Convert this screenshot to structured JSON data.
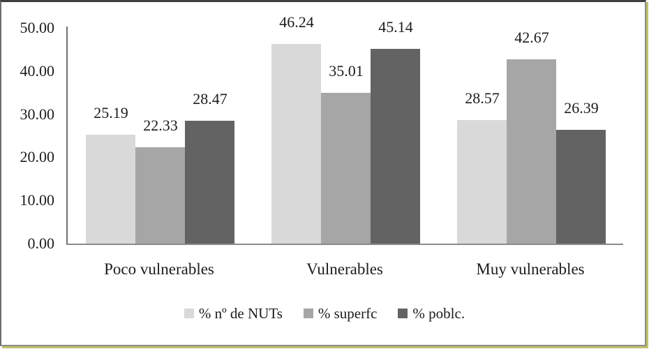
{
  "chart_data": {
    "type": "bar",
    "categories": [
      "Poco vulnerables",
      "Vulnerables",
      "Muy vulnerables"
    ],
    "series": [
      {
        "name": "% nº de NUTs",
        "color": "#d9d9d9",
        "values": [
          25.19,
          46.24,
          28.57
        ]
      },
      {
        "name": "% superfc",
        "color": "#a6a6a6",
        "values": [
          22.33,
          35.01,
          42.67
        ]
      },
      {
        "name": "% poblc.",
        "color": "#636363",
        "values": [
          28.47,
          45.14,
          26.39
        ]
      }
    ],
    "y_ticks": [
      "50.00",
      "40.00",
      "30.00",
      "20.00",
      "10.00",
      "0.00"
    ],
    "ylim": [
      0,
      50
    ],
    "title": "",
    "xlabel": "",
    "ylabel": "",
    "grid": false,
    "legend_position": "bottom",
    "value_label_decimals": 2
  },
  "colors": {
    "axis": "#7f7f7f",
    "text": "#1c1c1c",
    "frame_dark": "#3f3f3f",
    "frame_gray": "#8d8d8d",
    "frame_olive": "#c0c06a",
    "background": "#ffffff"
  }
}
